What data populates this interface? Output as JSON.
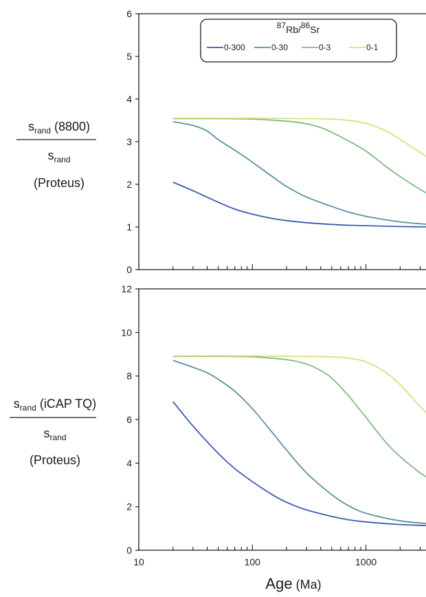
{
  "chart_data": [
    {
      "type": "line",
      "panel": "top",
      "xscale": "log",
      "xlim": [
        10,
        4000
      ],
      "ylim": [
        0,
        6
      ],
      "yticks": [
        "0",
        "1",
        "2",
        "3",
        "4",
        "5",
        "6"
      ],
      "ylabel": {
        "num_main": "s",
        "num_sub": "rand",
        "num_rest": " (8800)",
        "den_main": "s",
        "den_sub": "rand",
        "den_rest": "(Proteus)"
      },
      "legend": {
        "title_sup1": "87",
        "title_main1": "Rb/",
        "title_sup2": "86",
        "title_main2": "Sr",
        "placement": "top-center"
      },
      "series": [
        {
          "name": "0-300",
          "color": "#3a5bb0",
          "x": [
            20,
            30,
            50,
            70,
            100,
            150,
            200,
            300,
            500,
            700,
            1000,
            2000,
            4000
          ],
          "y": [
            2.05,
            1.85,
            1.58,
            1.42,
            1.3,
            1.2,
            1.15,
            1.1,
            1.06,
            1.04,
            1.03,
            1.01,
            1.0
          ]
        },
        {
          "name": "0-30",
          "color": "#5b8f9c",
          "x": [
            20,
            30,
            40,
            50,
            70,
            100,
            150,
            200,
            300,
            500,
            700,
            1000,
            2000,
            4000
          ],
          "y": [
            3.47,
            3.38,
            3.25,
            3.05,
            2.8,
            2.52,
            2.18,
            1.95,
            1.7,
            1.48,
            1.35,
            1.25,
            1.12,
            1.05
          ]
        },
        {
          "name": "0-3",
          "color": "#7fb97f",
          "x": [
            20,
            50,
            100,
            200,
            300,
            400,
            500,
            700,
            1000,
            1500,
            2000,
            3000,
            4000
          ],
          "y": [
            3.54,
            3.54,
            3.53,
            3.48,
            3.42,
            3.33,
            3.22,
            3.02,
            2.78,
            2.42,
            2.18,
            1.88,
            1.7
          ]
        },
        {
          "name": "0-1",
          "color": "#d7e27a",
          "x": [
            20,
            100,
            300,
            500,
            700,
            1000,
            1500,
            2000,
            3000,
            4000
          ],
          "y": [
            3.55,
            3.55,
            3.54,
            3.53,
            3.5,
            3.43,
            3.25,
            3.05,
            2.75,
            2.52
          ]
        }
      ]
    },
    {
      "type": "line",
      "panel": "bottom",
      "xscale": "log",
      "xlim": [
        10,
        4000
      ],
      "ylim": [
        0,
        12
      ],
      "yticks": [
        "0",
        "2",
        "4",
        "6",
        "8",
        "10",
        "12"
      ],
      "xticks": [
        "10",
        "100",
        "1000"
      ],
      "xlabel": {
        "main": "Age",
        "unit": " (Ma)"
      },
      "ylabel": {
        "num_main": "s",
        "num_sub": "rand",
        "num_rest": " (iCAP TQ)",
        "den_main": "s",
        "den_sub": "rand",
        "den_rest": "(Proteus)"
      },
      "series": [
        {
          "name": "0-300",
          "color": "#3a5bb0",
          "x": [
            20,
            30,
            50,
            70,
            100,
            150,
            200,
            300,
            500,
            700,
            1000,
            2000,
            4000
          ],
          "y": [
            6.82,
            5.7,
            4.45,
            3.75,
            3.15,
            2.55,
            2.2,
            1.85,
            1.55,
            1.4,
            1.3,
            1.18,
            1.12
          ]
        },
        {
          "name": "0-30",
          "color": "#5b8f9c",
          "x": [
            20,
            30,
            40,
            50,
            70,
            100,
            150,
            200,
            300,
            500,
            700,
            1000,
            2000,
            4000
          ],
          "y": [
            8.72,
            8.4,
            8.15,
            7.85,
            7.3,
            6.5,
            5.4,
            4.6,
            3.55,
            2.55,
            2.05,
            1.7,
            1.35,
            1.2
          ]
        },
        {
          "name": "0-3",
          "color": "#7fb97f",
          "x": [
            20,
            50,
            100,
            200,
            300,
            400,
            500,
            700,
            1000,
            1500,
            2000,
            3000,
            4000
          ],
          "y": [
            8.9,
            8.9,
            8.88,
            8.75,
            8.55,
            8.25,
            7.9,
            7.1,
            6.1,
            4.95,
            4.3,
            3.55,
            3.15
          ]
        },
        {
          "name": "0-1",
          "color": "#d7e27a",
          "x": [
            20,
            100,
            300,
            500,
            700,
            1000,
            1500,
            2000,
            3000,
            4000
          ],
          "y": [
            8.92,
            8.92,
            8.9,
            8.88,
            8.82,
            8.65,
            8.15,
            7.6,
            6.6,
            5.95
          ]
        }
      ]
    }
  ]
}
